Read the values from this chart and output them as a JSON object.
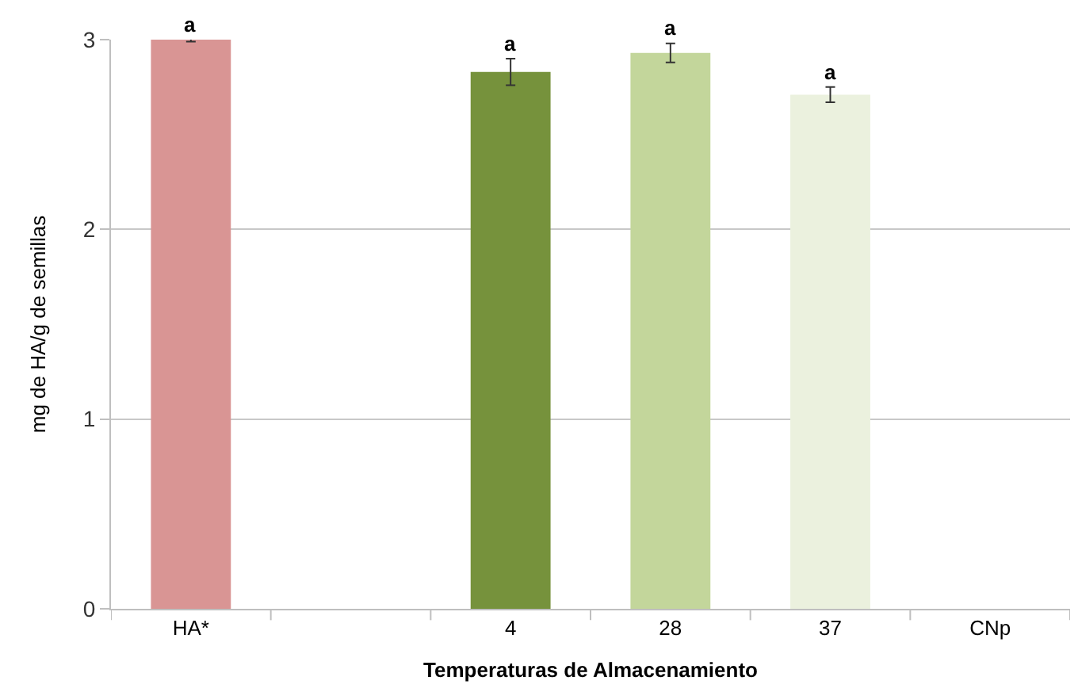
{
  "chart_data": {
    "type": "bar",
    "xlabel": "Temperaturas de Almacenamiento",
    "ylabel": "mg de HA/g de semillas",
    "categories": [
      "HA*",
      null,
      "4",
      "28",
      "37",
      "CNp"
    ],
    "values": [
      3.0,
      null,
      2.83,
      2.93,
      2.71,
      null
    ],
    "errors": [
      0.01,
      null,
      0.07,
      0.05,
      0.04,
      null
    ],
    "colors": [
      "#d99594",
      "#ffffff",
      "#76923c",
      "#c3d69b",
      "#ebf1de",
      "#ffffff"
    ],
    "ylim": [
      0,
      3
    ],
    "yticks": [
      0,
      1,
      2,
      3
    ],
    "grid": "y",
    "legend": false,
    "annotations": [
      {
        "text": "a",
        "x": "HA*",
        "y": 3.0
      },
      {
        "text": "a",
        "x": "4",
        "y": 2.9
      },
      {
        "text": "a",
        "x": "28",
        "y": 2.98
      },
      {
        "text": "a",
        "x": "37",
        "y": 2.75
      }
    ]
  }
}
